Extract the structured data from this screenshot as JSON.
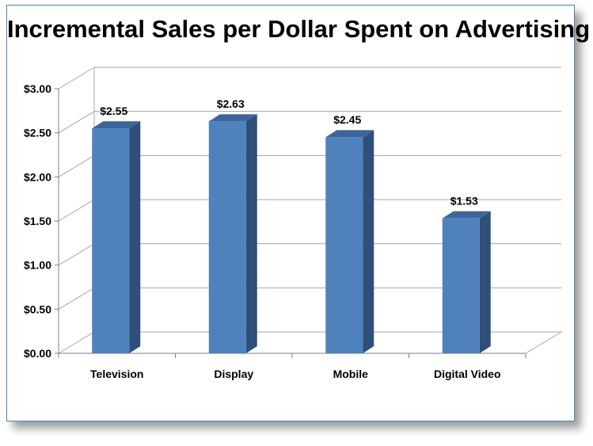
{
  "chart_data": {
    "type": "bar",
    "title": "Incremental Sales per Dollar Spent on Advertising",
    "categories": [
      "Television",
      "Display",
      "Mobile",
      "Digital Video"
    ],
    "values": [
      2.55,
      2.63,
      2.45,
      1.53
    ],
    "data_labels": [
      "$2.55",
      "$2.63",
      "$2.45",
      "$1.53"
    ],
    "y_ticks": [
      0,
      0.5,
      1.0,
      1.5,
      2.0,
      2.5,
      3.0
    ],
    "y_tick_labels": [
      "$0.00",
      "$0.50",
      "$1.00",
      "$1.50",
      "$2.00",
      "$2.50",
      "$3.00"
    ],
    "ylim": [
      0,
      3.0
    ],
    "xlabel": "",
    "ylabel": "",
    "grid": true,
    "legend": "none",
    "style": "3d-column",
    "colors": {
      "bar_front": "#4f81bd",
      "bar_side": "#2f4f78",
      "bar_top": "#3a66a0",
      "gridline": "#a6a6a6",
      "frame_border": "#4f81bd"
    }
  }
}
